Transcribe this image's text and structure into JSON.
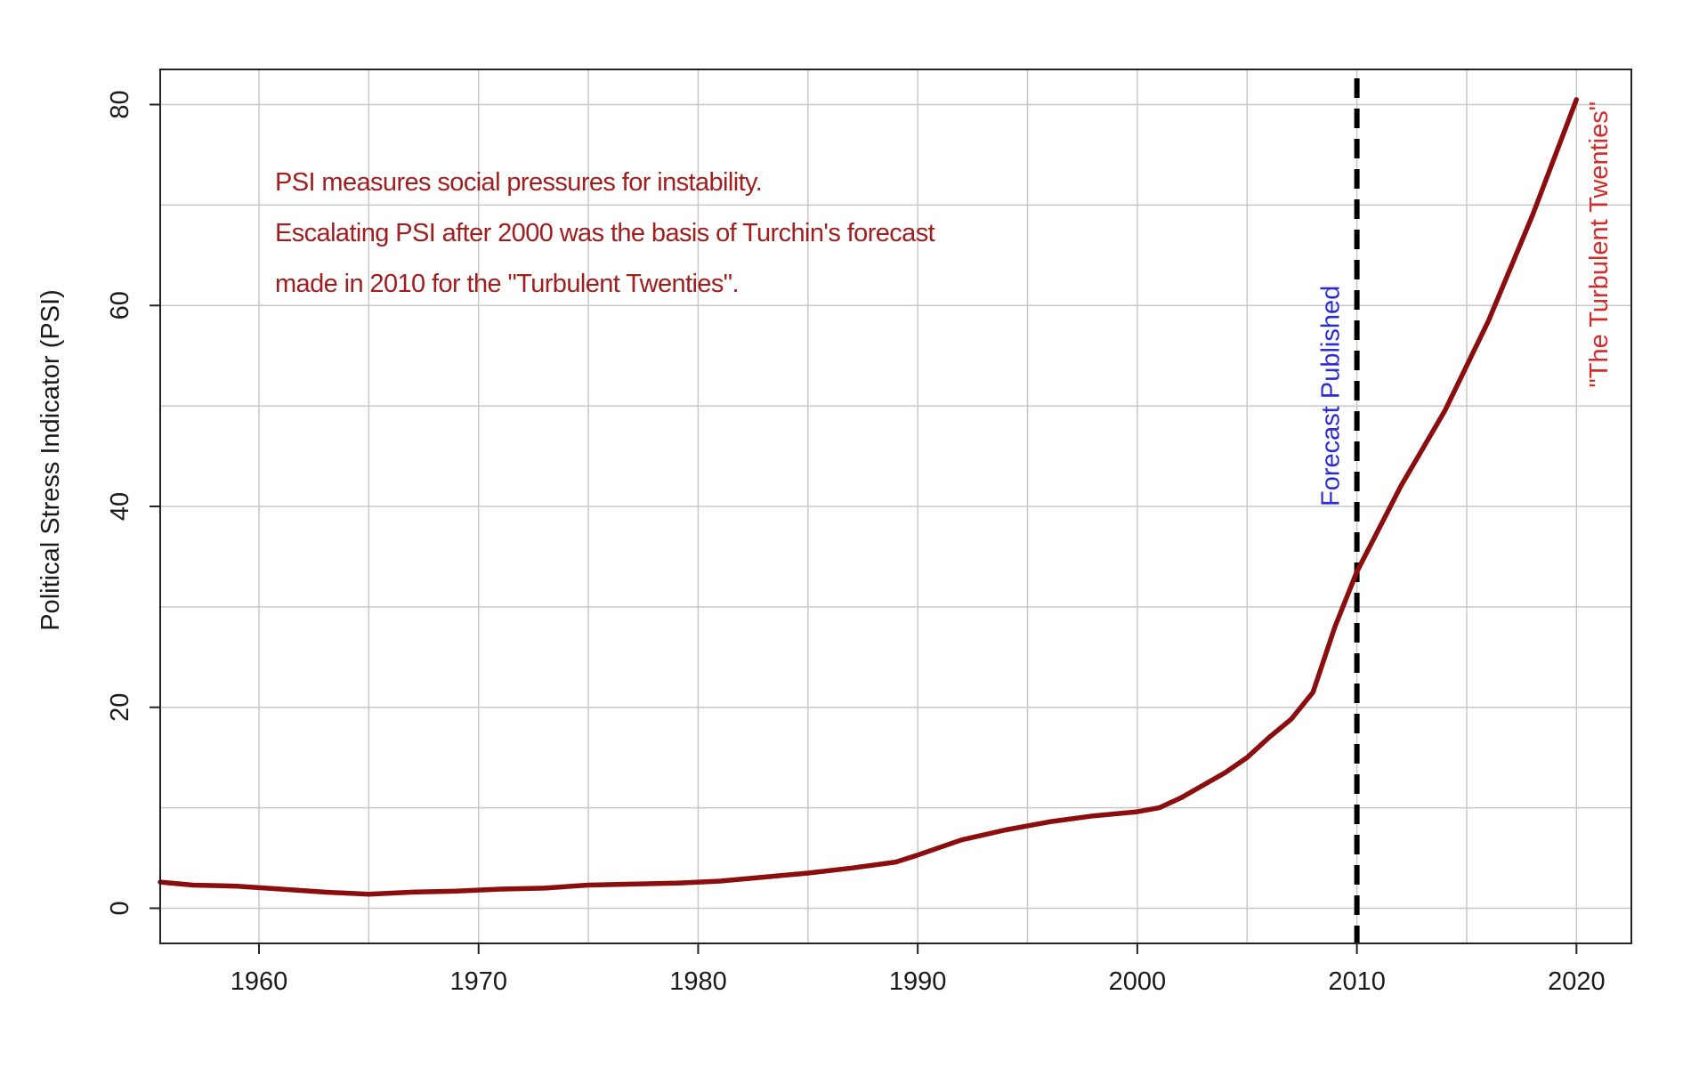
{
  "chart_data": {
    "type": "line",
    "ylabel": "Political Stress Indicator (PSI)",
    "xlabel": "",
    "xlim": [
      1955.5,
      2022.5
    ],
    "ylim": [
      -3.5,
      83.5
    ],
    "x_ticks": [
      1960,
      1970,
      1980,
      1990,
      2000,
      2010,
      2020
    ],
    "y_ticks": [
      0,
      20,
      40,
      60,
      80
    ],
    "x_tick_labels": [
      "1960",
      "1970",
      "1980",
      "1990",
      "2000",
      "2010",
      "2020"
    ],
    "y_tick_labels": [
      "0",
      "20",
      "40",
      "60",
      "80"
    ],
    "grid": true,
    "grid_x_step": 5,
    "grid_y_step": 10,
    "series": [
      {
        "color": "#8b0d0d",
        "x": [
          1955.5,
          1957,
          1959,
          1961,
          1963,
          1965,
          1967,
          1969,
          1971,
          1973,
          1975,
          1977,
          1979,
          1981,
          1983,
          1985,
          1987,
          1989,
          1990,
          1992,
          1994,
          1996,
          1998,
          2000,
          2001,
          2002,
          2004,
          2005,
          2006,
          2007,
          2008,
          2009,
          2010,
          2012,
          2014,
          2016,
          2018,
          2020
        ],
        "y": [
          2.6,
          2.3,
          2.2,
          1.9,
          1.6,
          1.4,
          1.6,
          1.7,
          1.9,
          2.0,
          2.3,
          2.4,
          2.5,
          2.7,
          3.1,
          3.5,
          4.0,
          4.6,
          5.3,
          6.8,
          7.8,
          8.6,
          9.2,
          9.6,
          10.0,
          11.0,
          13.5,
          15.0,
          17.0,
          18.8,
          21.5,
          28.0,
          33.5,
          42.0,
          49.5,
          58.5,
          69.0,
          80.5
        ]
      }
    ],
    "vline": {
      "x": 2010,
      "style": "dashed",
      "color": "#000000",
      "label": "Forecast Published",
      "label_color": "#2b2bd6"
    },
    "end_label": {
      "text": "\"The Turbulent Twenties\"",
      "color": "#d42a2a"
    },
    "annotations": [
      "PSI measures social pressures for instability.",
      "Escalating PSI after 2000 was the basis of Turchin's forecast",
      "made in 2010 for the \"Turbulent Twenties\"."
    ]
  }
}
